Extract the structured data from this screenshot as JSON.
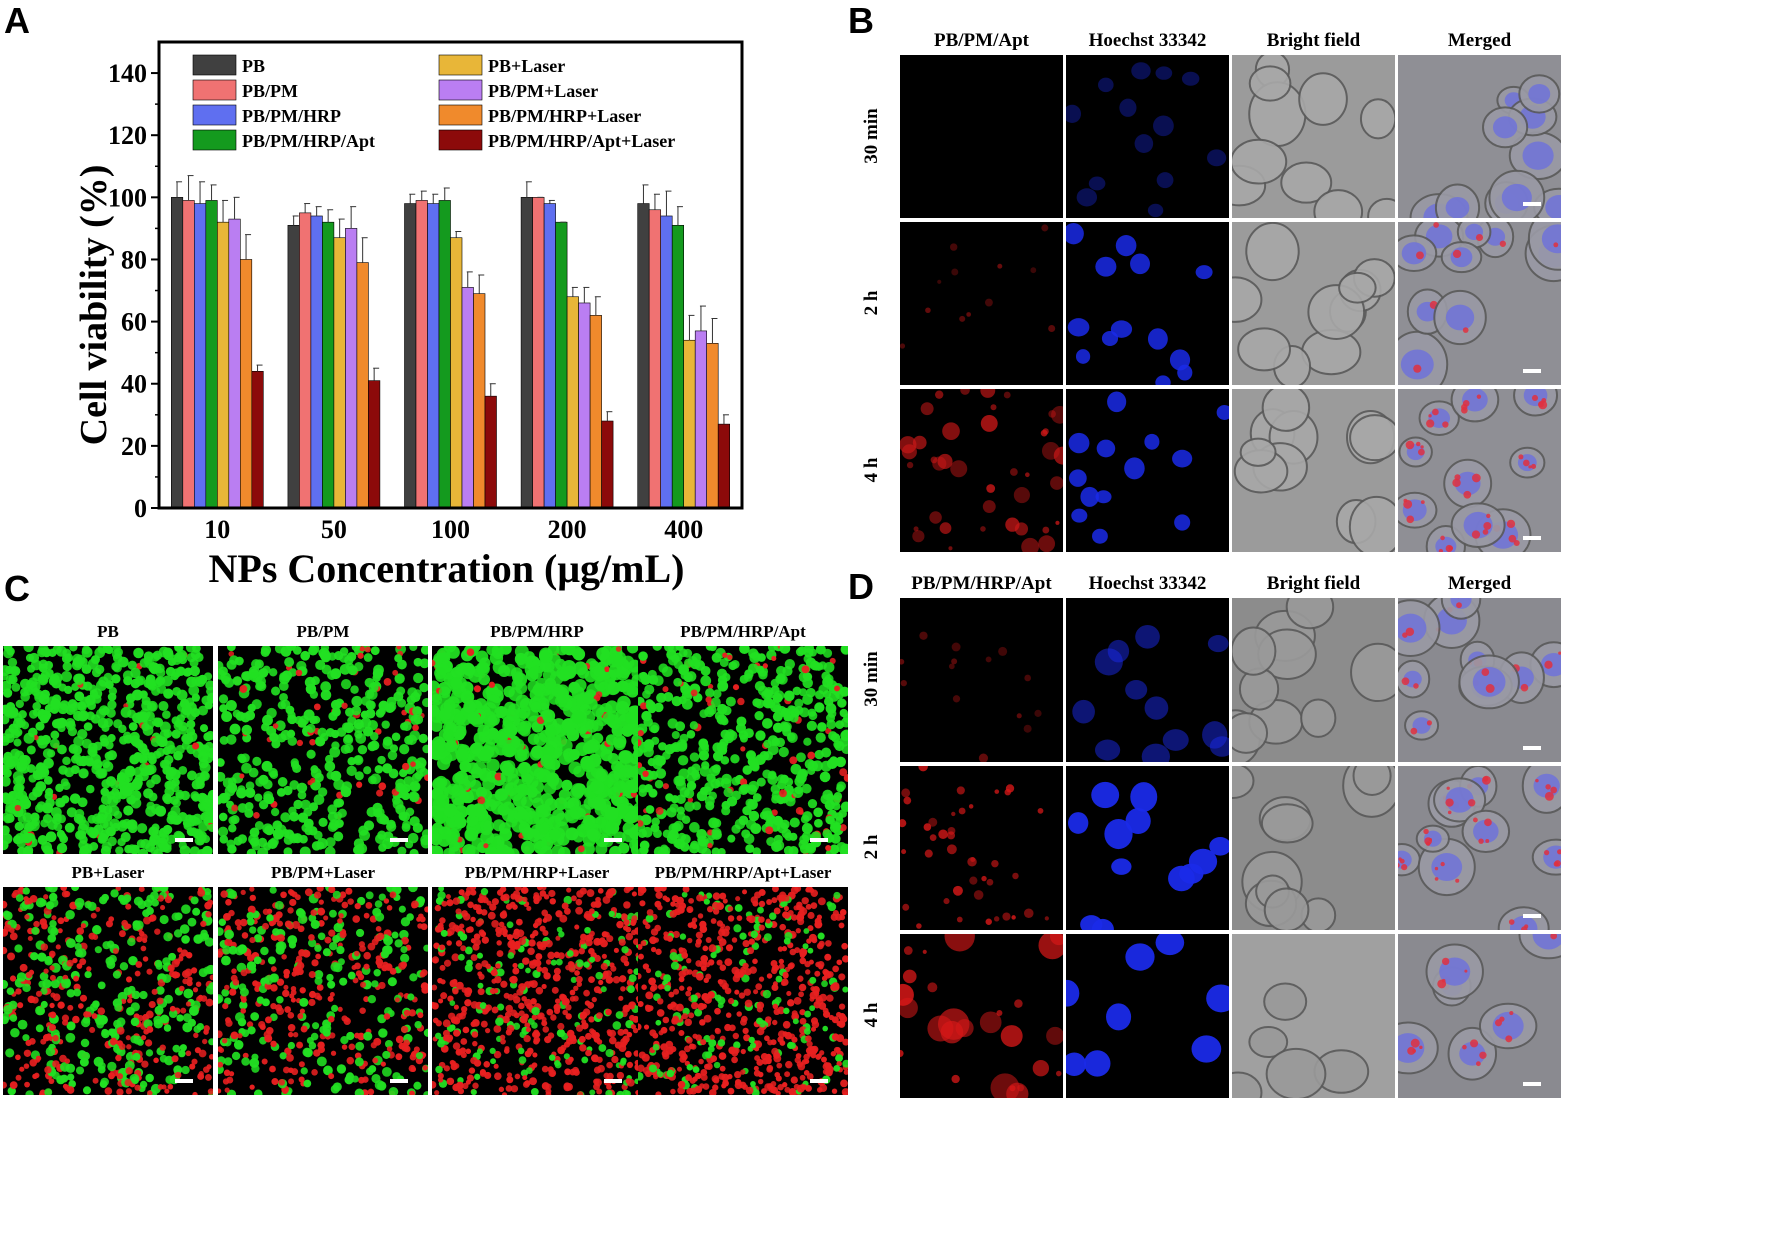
{
  "panel_letters": {
    "a": "A",
    "b": "B",
    "c": "C",
    "d": "D"
  },
  "chart_data": {
    "type": "bar",
    "title": "",
    "xlabel": "NPs Concentration (μg/mL)",
    "ylabel": "Cell viability (%)",
    "ylim": [
      0,
      150
    ],
    "yticks": [
      0,
      20,
      40,
      60,
      80,
      100,
      120,
      140
    ],
    "categories": [
      "10",
      "50",
      "100",
      "200",
      "400"
    ],
    "legend_position": "top",
    "series": [
      {
        "name": "PB",
        "color": "#404040",
        "values": [
          100,
          91,
          98,
          100,
          98
        ],
        "errors": [
          5,
          3,
          3,
          5,
          6
        ]
      },
      {
        "name": "PB/PM",
        "color": "#f07272",
        "values": [
          99,
          95,
          99,
          100,
          96
        ],
        "errors": [
          8,
          3,
          3,
          0,
          5
        ]
      },
      {
        "name": "PB/PM/HRP",
        "color": "#5f6ff0",
        "values": [
          98,
          94,
          98,
          98,
          94
        ],
        "errors": [
          7,
          3,
          3,
          1,
          8
        ]
      },
      {
        "name": "PB/PM/HRP/Apt",
        "color": "#149a1e",
        "values": [
          99,
          92,
          99,
          92,
          91
        ],
        "errors": [
          5,
          4,
          4,
          0,
          6
        ]
      },
      {
        "name": "PB+Laser",
        "color": "#e8b638",
        "values": [
          92,
          87,
          87,
          68,
          54
        ],
        "errors": [
          7,
          6,
          2,
          3,
          8
        ]
      },
      {
        "name": "PB/PM+Laser",
        "color": "#ba7ef2",
        "values": [
          93,
          90,
          71,
          66,
          57
        ],
        "errors": [
          7,
          7,
          5,
          5,
          8
        ]
      },
      {
        "name": "PB/PM/HRP+Laser",
        "color": "#f08a2c",
        "values": [
          80,
          79,
          69,
          62,
          53
        ],
        "errors": [
          8,
          8,
          6,
          6,
          8
        ]
      },
      {
        "name": "PB/PM/HRP/Apt+Laser",
        "color": "#8c0a0a",
        "values": [
          44,
          41,
          36,
          28,
          27
        ],
        "errors": [
          2,
          4,
          4,
          3,
          3
        ]
      }
    ]
  },
  "panel_b": {
    "columns": [
      "PB/PM/Apt",
      "Hoechst 33342",
      "Bright field",
      "Merged"
    ],
    "rows": [
      "30 min",
      "2 h",
      "4 h"
    ]
  },
  "panel_c": {
    "labels": [
      "PB",
      "PB/PM",
      "PB/PM/HRP",
      "PB/PM/HRP/Apt",
      "PB+Laser",
      "PB/PM+Laser",
      "PB/PM/HRP+Laser",
      "PB/PM/HRP/Apt+Laser"
    ]
  },
  "panel_d": {
    "columns": [
      "PB/PM/HRP/Apt",
      "Hoechst 33342",
      "Bright field",
      "Merged"
    ],
    "rows": [
      "30 min",
      "2 h",
      "4 h"
    ]
  }
}
